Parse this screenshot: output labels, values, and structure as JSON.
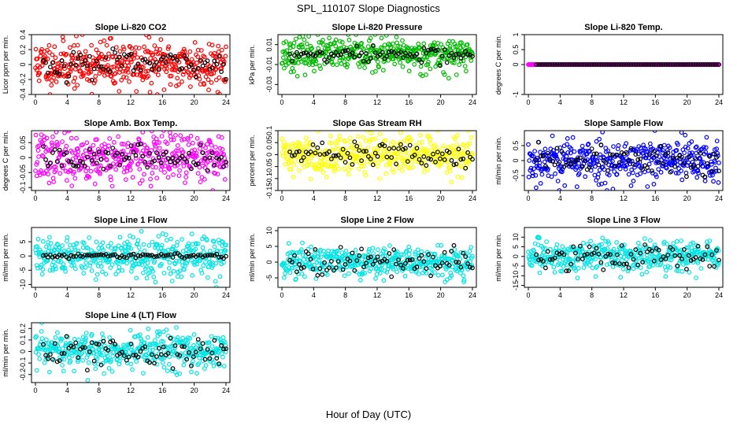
{
  "figure": {
    "title": "SPL_110107  Slope Diagnostics",
    "xlabel": "Hour of Day (UTC)"
  },
  "chart_data": [
    {
      "type": "scatter",
      "title": "Slope Li-820 CO2",
      "ylabel": "Licor ppm per min.",
      "xlim": [
        -0.5,
        24.5
      ],
      "ylim": [
        -0.4,
        0.4
      ],
      "xticks": [
        0,
        4,
        8,
        12,
        16,
        20,
        24
      ],
      "yticks": [
        -0.4,
        -0.2,
        0,
        0.2,
        0.4
      ],
      "grid": false,
      "color": "#ff0000",
      "spread": 0.16,
      "black_spread": 0.09,
      "seed": 11
    },
    {
      "type": "scatter",
      "title": "Slope Li-820 Pressure",
      "ylabel": "kPa per min.",
      "xlim": [
        -0.5,
        24.5
      ],
      "ylim": [
        -0.04,
        0.02
      ],
      "xticks": [
        0,
        4,
        8,
        12,
        16,
        20,
        24
      ],
      "yticks": [
        -0.03,
        -0.01,
        0.01
      ],
      "grid": false,
      "color": "#00bb00",
      "spread": 0.008,
      "black_spread": 0.004,
      "seed": 23
    },
    {
      "type": "scatter",
      "title": "Slope Li-820 Temp.",
      "ylabel": "degrees C per min.",
      "xlim": [
        -0.5,
        24.5
      ],
      "ylim": [
        -1.0,
        1.0
      ],
      "xticks": [
        0,
        4,
        8,
        12,
        16,
        20,
        24
      ],
      "yticks": [
        -1.0,
        0.0,
        0.5,
        1.0
      ],
      "grid": false,
      "color": "#ff00ff",
      "spread": 0.0,
      "black_spread": 0.0,
      "seed": 5
    },
    {
      "type": "scatter",
      "title": "Slope Amb. Box Temp.",
      "ylabel": "degrees C per min.",
      "xlim": [
        -0.5,
        24.5
      ],
      "ylim": [
        -0.11,
        0.09
      ],
      "xticks": [
        0,
        4,
        8,
        12,
        16,
        20,
        24
      ],
      "yticks": [
        -0.1,
        -0.05,
        0.0,
        0.05
      ],
      "grid": false,
      "color": "#ff00ff",
      "spread": 0.04,
      "black_spread": 0.02,
      "seed": 37
    },
    {
      "type": "scatter",
      "title": "Slope Gas Stream RH",
      "ylabel": "percent per min.",
      "xlim": [
        -0.5,
        24.5
      ],
      "ylim": [
        -0.15,
        0.1
      ],
      "xticks": [
        0,
        4,
        8,
        12,
        16,
        20,
        24
      ],
      "yticks": [
        -0.15,
        -0.1,
        -0.05,
        0.0,
        0.05,
        0.1
      ],
      "grid": false,
      "color": "#ffff00",
      "spread": 0.04,
      "black_spread": 0.025,
      "seed": 41
    },
    {
      "type": "scatter",
      "title": "Slope Sample Flow",
      "ylabel": "ml/min per min.",
      "xlim": [
        -0.5,
        24.5
      ],
      "ylim": [
        -1.0,
        1.0
      ],
      "xticks": [
        0,
        4,
        8,
        12,
        16,
        20,
        24
      ],
      "yticks": [
        -0.5,
        0.0,
        0.5
      ],
      "grid": false,
      "color": "#0000ff",
      "spread": 0.38,
      "black_spread": 0.25,
      "seed": 53
    },
    {
      "type": "scatter",
      "title": "Slope Line 1 Flow",
      "ylabel": "ml/min per min.",
      "xlim": [
        -0.5,
        24.5
      ],
      "ylim": [
        -11,
        10
      ],
      "xticks": [
        0,
        4,
        8,
        12,
        16,
        20,
        24
      ],
      "yticks": [
        -10,
        -5,
        0,
        5
      ],
      "grid": false,
      "color": "#00e5e5",
      "spread": 3.5,
      "black_spread": 0.4,
      "seed": 61
    },
    {
      "type": "scatter",
      "title": "Slope Line 2 Flow",
      "ylabel": "ml/min per min.",
      "xlim": [
        -0.5,
        24.5
      ],
      "ylim": [
        -8,
        11
      ],
      "xticks": [
        0,
        4,
        8,
        12,
        16,
        20,
        24
      ],
      "yticks": [
        -5,
        0,
        5,
        10
      ],
      "grid": false,
      "color": "#00e5e5",
      "spread": 2.6,
      "black_spread": 2.2,
      "seed": 71
    },
    {
      "type": "scatter",
      "title": "Slope Line 3 Flow",
      "ylabel": "ml/min per min.",
      "xlim": [
        -0.5,
        24.5
      ],
      "ylim": [
        -16,
        15
      ],
      "xticks": [
        0,
        4,
        8,
        12,
        16,
        20,
        24
      ],
      "yticks": [
        -15,
        -10,
        -5,
        0,
        5,
        10
      ],
      "grid": false,
      "color": "#00e5e5",
      "spread": 4.0,
      "black_spread": 3.5,
      "seed": 83
    },
    {
      "type": "scatter",
      "title": "Slope Line 4 (LT) Flow",
      "ylabel": "ml/min per min.",
      "xlim": [
        -0.5,
        24.5
      ],
      "ylim": [
        -0.27,
        0.25
      ],
      "xticks": [
        0,
        4,
        8,
        12,
        16,
        20,
        24
      ],
      "yticks": [
        -0.2,
        -0.1,
        0.0,
        0.1,
        0.2
      ],
      "grid": false,
      "color": "#00e5e5",
      "spread": 0.085,
      "black_spread": 0.07,
      "seed": 97
    }
  ]
}
